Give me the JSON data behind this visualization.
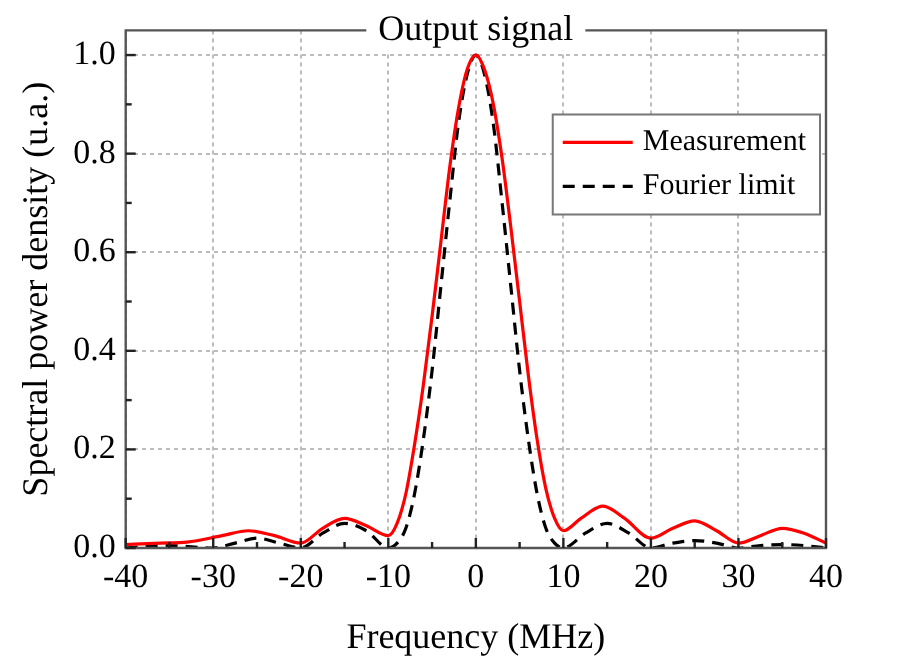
{
  "chart_data": {
    "type": "line",
    "title": "Output signal",
    "xlabel": "Frequency (MHz)",
    "ylabel": "Spectral power density (u.a.)",
    "xlim": [
      -40,
      40
    ],
    "xticks": [
      -40,
      -30,
      -20,
      -10,
      0,
      10,
      20,
      30,
      40
    ],
    "ylim": [
      0,
      1.05
    ],
    "yticks": [
      {
        "value": 0,
        "label": "0.0"
      },
      0.2,
      0.4,
      0.6,
      0.8,
      {
        "value": 1,
        "label": "1.0"
      }
    ],
    "grid": true,
    "legend": "top right",
    "marker": "none",
    "series": [
      {
        "name": "Measurement",
        "color": "#ff0000",
        "line_style": "solid",
        "x": [
          -40,
          -36,
          -33,
          -29,
          -26,
          -23,
          -20,
          -17.5,
          -15,
          -12.5,
          -10,
          -9,
          -8,
          -7,
          -6,
          -5,
          -4,
          -3,
          -2,
          -1,
          0,
          1,
          2,
          3,
          4,
          5,
          6,
          7,
          8,
          9,
          10,
          12,
          14.5,
          17,
          20,
          22.5,
          25,
          27.5,
          30,
          32.5,
          35,
          37.5,
          40
        ],
        "values": [
          0.007,
          0.01,
          0.012,
          0.025,
          0.035,
          0.025,
          0.01,
          0.04,
          0.06,
          0.045,
          0.025,
          0.05,
          0.11,
          0.21,
          0.33,
          0.47,
          0.62,
          0.77,
          0.89,
          0.97,
          1.0,
          0.97,
          0.9,
          0.79,
          0.65,
          0.5,
          0.35,
          0.22,
          0.12,
          0.06,
          0.035,
          0.06,
          0.085,
          0.06,
          0.02,
          0.04,
          0.055,
          0.035,
          0.01,
          0.025,
          0.04,
          0.03,
          0.01
        ]
      },
      {
        "name": "Fourier limit",
        "color": "#000000",
        "line_style": "dashed",
        "x": [
          -40,
          -35,
          -30,
          -27.5,
          -25,
          -22.5,
          -20,
          -17.5,
          -15,
          -12.5,
          -10,
          -9,
          -8,
          -7,
          -6,
          -5,
          -4,
          -3,
          -2,
          -1,
          0,
          1,
          2,
          3,
          4,
          5,
          6,
          7,
          8,
          9,
          10,
          12.5,
          15,
          17.5,
          20,
          22.5,
          25,
          27.5,
          30,
          32.5,
          35,
          37.5,
          40
        ],
        "values": [
          0,
          0.005,
          0,
          0.01,
          0.02,
          0.01,
          0,
          0.03,
          0.05,
          0.035,
          0,
          0.01,
          0.04,
          0.11,
          0.22,
          0.36,
          0.53,
          0.7,
          0.86,
          0.96,
          1.0,
          0.96,
          0.86,
          0.7,
          0.53,
          0.36,
          0.22,
          0.11,
          0.04,
          0.01,
          0,
          0.03,
          0.05,
          0.03,
          0,
          0.01,
          0.015,
          0.01,
          0,
          0.005,
          0.007,
          0.005,
          0
        ]
      }
    ]
  }
}
